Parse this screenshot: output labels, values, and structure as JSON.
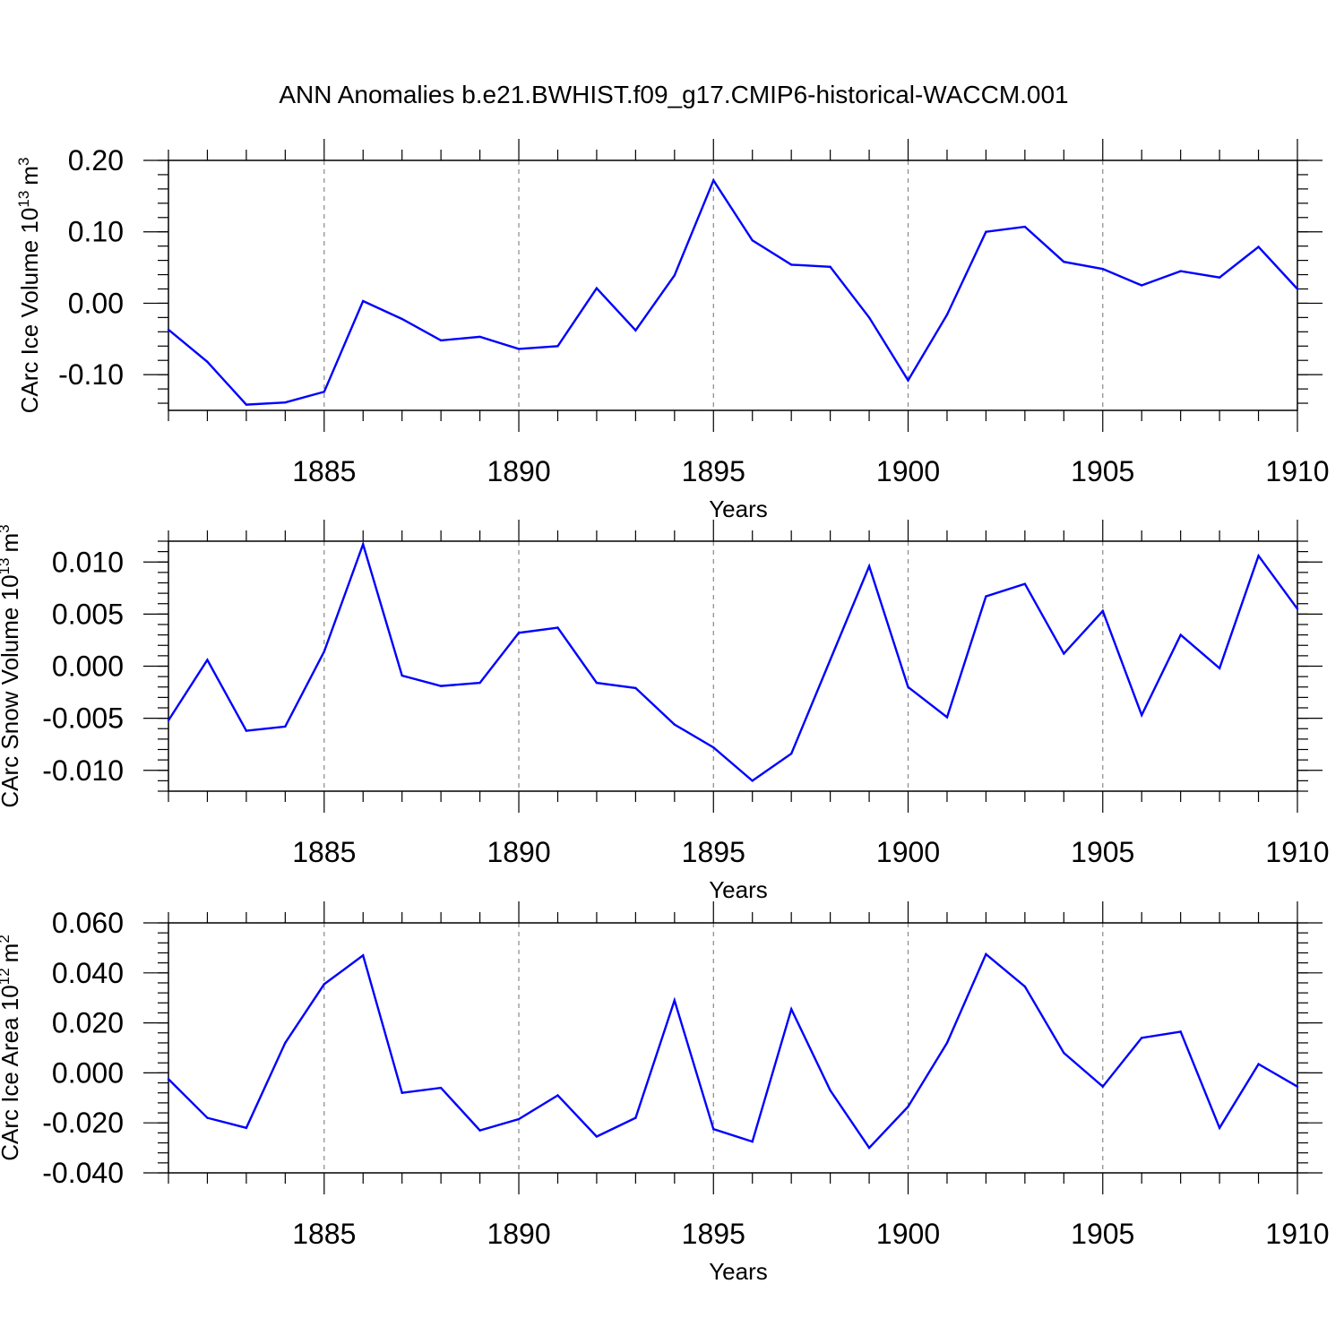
{
  "title": "ANN Anomalies b.e21.BWHIST.f09_g17.CMIP6-historical-WACCM.001",
  "line_color": "#0000ff",
  "chart_data": [
    {
      "type": "line",
      "name": "ice-volume",
      "xlabel": "Years",
      "ylabel_text": "CArc Ice Volume 10",
      "ylabel_sup": "13",
      "ylabel_unit": "m",
      "ylabel_unit_sup": "3",
      "xlim": [
        1881,
        1910
      ],
      "ylim": [
        -0.15,
        0.2
      ],
      "x_ticks": [
        1885,
        1890,
        1895,
        1900,
        1905,
        1910
      ],
      "x_tick_labels": [
        "1885",
        "1890",
        "1895",
        "1900",
        "1905",
        "1910"
      ],
      "y_ticks": [
        0.2,
        0.1,
        0.0,
        -0.1
      ],
      "y_tick_labels": [
        "0.20",
        "0.10",
        "0.00",
        "-0.10"
      ],
      "y_minor_step": 0.02,
      "grid": "vertical dashed at major x ticks",
      "x": [
        1881,
        1882,
        1883,
        1884,
        1885,
        1886,
        1887,
        1888,
        1889,
        1890,
        1891,
        1892,
        1893,
        1894,
        1895,
        1896,
        1897,
        1898,
        1899,
        1900,
        1901,
        1902,
        1903,
        1904,
        1905,
        1906,
        1907,
        1908,
        1909,
        1910
      ],
      "values": [
        -0.037,
        -0.082,
        -0.142,
        -0.139,
        -0.124,
        0.003,
        -0.022,
        -0.052,
        -0.047,
        -0.064,
        -0.06,
        0.021,
        -0.038,
        0.039,
        0.172,
        0.088,
        0.054,
        0.051,
        -0.02,
        -0.108,
        -0.016,
        0.1,
        0.107,
        0.058,
        0.048,
        0.025,
        0.045,
        0.036,
        0.079,
        0.02
      ]
    },
    {
      "type": "line",
      "name": "snow-volume",
      "xlabel": "Years",
      "ylabel_text": "CArc Snow Volume 10",
      "ylabel_sup": "13",
      "ylabel_unit": "m",
      "ylabel_unit_sup": "3",
      "xlim": [
        1881,
        1910
      ],
      "ylim": [
        -0.012,
        0.012
      ],
      "x_ticks": [
        1885,
        1890,
        1895,
        1900,
        1905,
        1910
      ],
      "x_tick_labels": [
        "1885",
        "1890",
        "1895",
        "1900",
        "1905",
        "1910"
      ],
      "y_ticks": [
        0.01,
        0.005,
        0.0,
        -0.005,
        -0.01
      ],
      "y_tick_labels": [
        "0.010",
        "0.005",
        "0.000",
        "-0.005",
        "-0.010"
      ],
      "y_minor_step": 0.001,
      "grid": "vertical dashed at major x ticks",
      "x": [
        1881,
        1882,
        1883,
        1884,
        1885,
        1886,
        1887,
        1888,
        1889,
        1890,
        1891,
        1892,
        1893,
        1894,
        1895,
        1896,
        1897,
        1898,
        1899,
        1900,
        1901,
        1902,
        1903,
        1904,
        1905,
        1906,
        1907,
        1908,
        1909,
        1910
      ],
      "values": [
        -0.0052,
        0.0006,
        -0.0062,
        -0.0058,
        0.0014,
        0.0117,
        -0.0009,
        -0.0019,
        -0.0016,
        0.0032,
        0.0037,
        -0.0016,
        -0.0021,
        -0.0056,
        -0.0078,
        -0.011,
        -0.0084,
        0.0006,
        0.0096,
        -0.002,
        -0.0049,
        0.0067,
        0.0079,
        0.0012,
        0.0053,
        -0.0047,
        0.003,
        -0.0002,
        0.0106,
        0.0055
      ]
    },
    {
      "type": "line",
      "name": "ice-area",
      "xlabel": "Years",
      "ylabel_text": "CArc Ice Area 10",
      "ylabel_sup": "12",
      "ylabel_unit": "m",
      "ylabel_unit_sup": "2",
      "xlim": [
        1881,
        1910
      ],
      "ylim": [
        -0.04,
        0.06
      ],
      "x_ticks": [
        1885,
        1890,
        1895,
        1900,
        1905,
        1910
      ],
      "x_tick_labels": [
        "1885",
        "1890",
        "1895",
        "1900",
        "1905",
        "1910"
      ],
      "y_ticks": [
        0.06,
        0.04,
        0.02,
        0.0,
        -0.02,
        -0.04
      ],
      "y_tick_labels": [
        "0.060",
        "0.040",
        "0.020",
        "0.000",
        "-0.020",
        "-0.040"
      ],
      "y_minor_step": 0.004,
      "grid": "vertical dashed at major x ticks",
      "x": [
        1881,
        1882,
        1883,
        1884,
        1885,
        1886,
        1887,
        1888,
        1889,
        1890,
        1891,
        1892,
        1893,
        1894,
        1895,
        1896,
        1897,
        1898,
        1899,
        1900,
        1901,
        1902,
        1903,
        1904,
        1905,
        1906,
        1907,
        1908,
        1909,
        1910
      ],
      "values": [
        -0.0025,
        -0.018,
        -0.022,
        0.012,
        0.0355,
        0.047,
        -0.008,
        -0.006,
        -0.023,
        -0.0185,
        -0.009,
        -0.0255,
        -0.018,
        0.029,
        -0.0225,
        -0.0275,
        0.0255,
        -0.007,
        -0.03,
        -0.0135,
        0.012,
        0.0475,
        0.0345,
        0.008,
        -0.0055,
        0.014,
        0.0165,
        -0.022,
        0.0035,
        -0.0055
      ]
    }
  ]
}
